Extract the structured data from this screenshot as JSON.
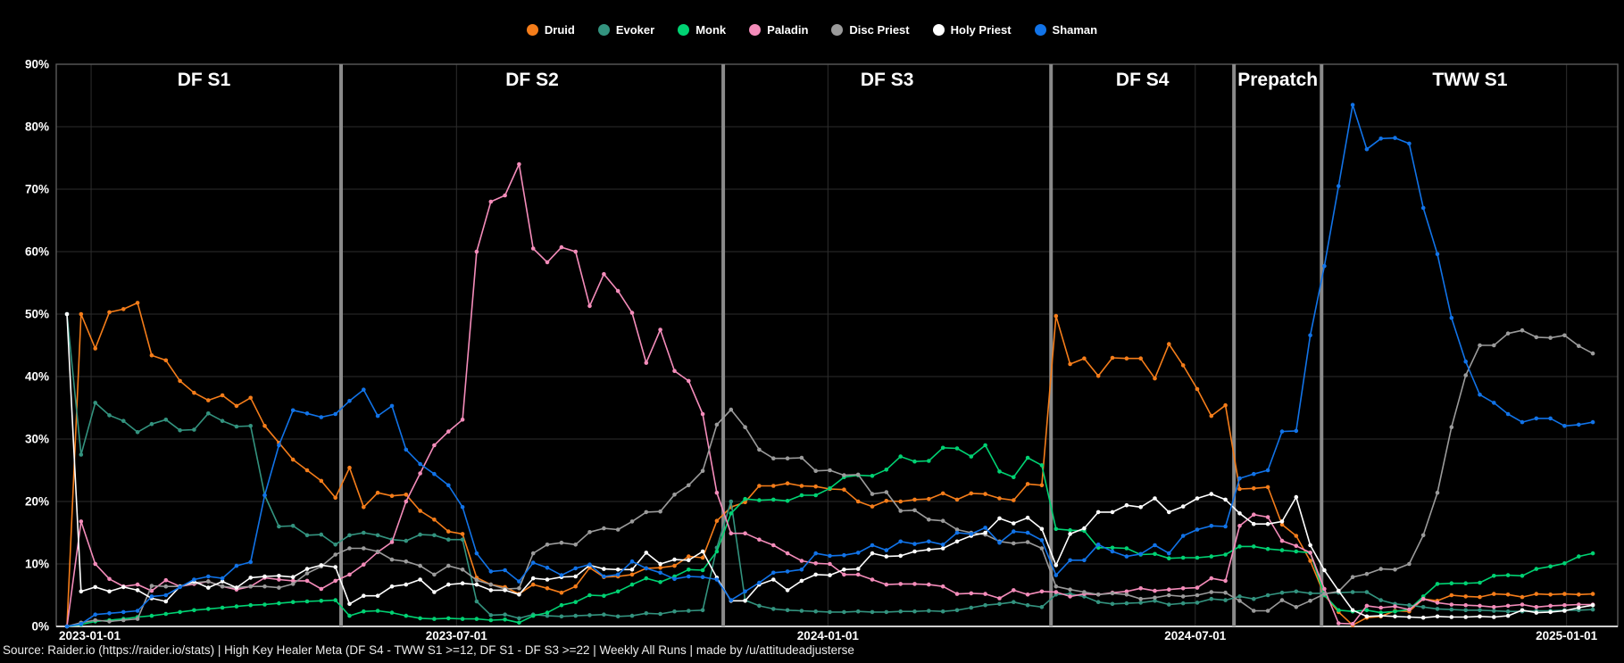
{
  "source_line": "Source: Raider.io (https://raider.io/stats) | High Key Healer Meta (DF S4 - TWW S1 >=12, DF S1 - DF S3 >=22 | Weekly All Runs | made by /u/attitudeadjusterse",
  "colors": {
    "background": "#000000",
    "grid": "#2d2d2d",
    "plot_border": "#5a5a5a",
    "bottom_axis": "#d0d0d0",
    "season_divider": "#8a8a8a",
    "text": "#ffffff"
  },
  "chart_data": {
    "type": "line",
    "title": "High Key Healer Meta",
    "grid": true,
    "legend_position": "top",
    "ylim": [
      0,
      90
    ],
    "y_ticks": [
      "0%",
      "10%",
      "20%",
      "30%",
      "40%",
      "50%",
      "60%",
      "70%",
      "80%",
      "90%"
    ],
    "x_start_date": "2022-12-20",
    "x_interval": "weekly",
    "weeks_count": 109,
    "plot_end_week": 109.8,
    "x_ticks": [
      {
        "label": "2023-01-01",
        "week": 1.71
      },
      {
        "label": "2023-07-01",
        "week": 27.57
      },
      {
        "label": "2024-01-01",
        "week": 53.86
      },
      {
        "label": "2024-07-01",
        "week": 79.86
      },
      {
        "label": "2025-01-01",
        "week": 106.14
      }
    ],
    "sections": [
      {
        "label": "DF S1",
        "start_week": 0
      },
      {
        "label": "DF S2",
        "start_week": 19.4
      },
      {
        "label": "DF S3",
        "start_week": 46.45
      },
      {
        "label": "DF S4",
        "start_week": 69.65
      },
      {
        "label": "Prepatch",
        "start_week": 82.6
      },
      {
        "label": "TWW S1",
        "start_week": 88.8
      }
    ],
    "series": [
      {
        "name": "Druid",
        "color": "#f57d1a",
        "values": [
          0,
          50,
          44.5,
          50.3,
          50.8,
          51.8,
          43.4,
          42.6,
          39.3,
          37.4,
          36.2,
          37,
          35.3,
          36.6,
          32.1,
          29.4,
          26.7,
          25,
          23.3,
          20.6,
          25.4,
          19.1,
          21.4,
          20.9,
          21.1,
          18.5,
          17.1,
          15.2,
          14.8,
          7.8,
          6.7,
          6.3,
          5.2,
          6.7,
          6.1,
          5.4,
          6.4,
          9.4,
          7.9,
          8,
          8.3,
          9.3,
          9.4,
          9.7,
          11.2,
          11,
          16.9,
          19.1,
          19.9,
          22.5,
          22.5,
          22.9,
          22.5,
          22.4,
          22,
          21.9,
          20,
          19.2,
          20.1,
          20,
          20.3,
          20.4,
          21.3,
          20.3,
          21.3,
          21.2,
          20.5,
          20.2,
          22.8,
          22.6,
          49.7,
          42,
          42.9,
          40.1,
          43,
          42.9,
          42.9,
          39.7,
          45.2,
          41.8,
          38,
          33.7,
          35.4,
          22,
          22.1,
          22.3,
          16.3,
          14.5,
          10.5,
          5,
          2.3,
          0.2,
          1.4,
          1.6,
          2.5,
          2.4,
          4.4,
          4.1,
          5,
          4.8,
          4.7,
          5.2,
          5.1,
          4.7,
          5.2,
          5.1,
          5.2,
          5.1,
          5.2
        ]
      },
      {
        "name": "Evoker",
        "color": "#33937f",
        "values": [
          50,
          27.5,
          35.8,
          33.8,
          32.9,
          31.1,
          32.4,
          33.1,
          31.4,
          31.5,
          34.1,
          32.9,
          32,
          32.1,
          21,
          16,
          16.1,
          14.6,
          14.7,
          13.1,
          14.6,
          15,
          14.6,
          13.9,
          13.7,
          14.7,
          14.6,
          13.9,
          13.9,
          4,
          1.8,
          1.9,
          1.3,
          1.9,
          1.7,
          1.6,
          1.7,
          1.8,
          1.9,
          1.6,
          1.7,
          2.1,
          2,
          2.4,
          2.5,
          2.6,
          12.6,
          20,
          4.2,
          3.3,
          2.8,
          2.6,
          2.5,
          2.4,
          2.3,
          2.3,
          2.4,
          2.3,
          2.3,
          2.4,
          2.4,
          2.5,
          2.4,
          2.6,
          3,
          3.4,
          3.6,
          3.9,
          3.4,
          3.1,
          5.1,
          5.2,
          4.8,
          3.9,
          3.6,
          3.7,
          3.8,
          4.1,
          3.5,
          3.7,
          3.8,
          4.4,
          4.2,
          4.8,
          4.4,
          5,
          5.4,
          5.6,
          5.3,
          5.3,
          5.4,
          5.5,
          5.5,
          4.2,
          3.6,
          3.4,
          3.1,
          2.8,
          2.7,
          2.6,
          2.6,
          2.5,
          2.4,
          2.4,
          2.5,
          2.5,
          2.6,
          2.6,
          2.7
        ]
      },
      {
        "name": "Monk",
        "color": "#00d273",
        "values": [
          0,
          0.3,
          0.8,
          1,
          1.2,
          1.5,
          1.7,
          2,
          2.3,
          2.6,
          2.8,
          3,
          3.2,
          3.4,
          3.5,
          3.7,
          3.9,
          4,
          4.1,
          4.2,
          1.7,
          2.4,
          2.5,
          2.2,
          1.7,
          1.3,
          1.2,
          1.3,
          1.2,
          1.2,
          1,
          1.1,
          0.6,
          1.7,
          2.2,
          3.4,
          3.9,
          5,
          4.9,
          5.6,
          6.7,
          7.7,
          7.1,
          8,
          9.1,
          9,
          12,
          18.1,
          20.4,
          20.2,
          20.3,
          20.1,
          21,
          21,
          22.1,
          23.9,
          24.2,
          24.1,
          25.1,
          27.2,
          26.4,
          26.5,
          28.6,
          28.5,
          27.2,
          29,
          24.8,
          23.9,
          27,
          25.8,
          15.6,
          15.4,
          15.3,
          12.6,
          12.6,
          12.5,
          11.5,
          11.6,
          10.9,
          11,
          11,
          11.2,
          11.5,
          12.8,
          12.8,
          12.4,
          12.2,
          12,
          11.8,
          5,
          2.6,
          2.4,
          2.6,
          2.2,
          2.4,
          2.7,
          4.8,
          6.8,
          6.9,
          6.9,
          7,
          8.1,
          8.2,
          8.1,
          9.2,
          9.6,
          10.1,
          11.2,
          11.7
        ]
      },
      {
        "name": "Paladin",
        "color": "#f48cba",
        "values": [
          0,
          16.8,
          10,
          7.6,
          6.4,
          6.7,
          5.7,
          7.4,
          6.4,
          6.8,
          7.2,
          6.4,
          5.9,
          6.4,
          7.8,
          7.5,
          7.3,
          7.3,
          6,
          7.3,
          8.3,
          9.9,
          11.9,
          13.5,
          20,
          24.5,
          29,
          31.2,
          33.1,
          60,
          68,
          69,
          74,
          60.5,
          58.3,
          60.7,
          60,
          51.3,
          56.4,
          53.7,
          50.2,
          42.2,
          47.5,
          40.9,
          39.3,
          34,
          21.4,
          14.9,
          14.9,
          13.9,
          13,
          11.7,
          10.5,
          10.1,
          10,
          8.3,
          8.3,
          7.5,
          6.7,
          6.8,
          6.8,
          6.7,
          6.4,
          5.2,
          5.3,
          5.2,
          4.5,
          5.8,
          5.1,
          5.6,
          5.5,
          4.8,
          5.2,
          5.1,
          5.4,
          5.6,
          6.1,
          5.7,
          5.9,
          6.1,
          6.2,
          7.7,
          7.3,
          16.1,
          17.9,
          17.5,
          13.7,
          12.9,
          11.8,
          6,
          0.5,
          0.4,
          3.3,
          3,
          3.2,
          2.7,
          4.4,
          3.8,
          3.5,
          3.4,
          3.3,
          3.1,
          3.3,
          3.5,
          3.1,
          3.3,
          3.4,
          3.5,
          3.5
        ]
      },
      {
        "name": "Disc Priest",
        "color": "#9b9b9b",
        "values": [
          0,
          0.6,
          1,
          0.8,
          1,
          1.2,
          6.5,
          6.4,
          6.4,
          7,
          7.2,
          6.4,
          6.2,
          6.4,
          6.4,
          6.2,
          6.8,
          8.5,
          9.6,
          11.5,
          12.5,
          12.5,
          12,
          10.7,
          10.4,
          9.7,
          8.3,
          9.7,
          9.1,
          7.4,
          6.7,
          6,
          6.1,
          11.7,
          13.1,
          13.4,
          13.1,
          15.1,
          15.7,
          15.5,
          16.8,
          18.3,
          18.4,
          21.1,
          22.6,
          24.9,
          32.3,
          34.7,
          31.9,
          28.3,
          26.9,
          26.9,
          27,
          24.9,
          25,
          24.2,
          24.3,
          21.2,
          21.5,
          18.5,
          18.6,
          17.1,
          16.9,
          15.5,
          15,
          14.7,
          13.6,
          13.3,
          13.5,
          12.5,
          6.4,
          5.9,
          5.5,
          5.1,
          5.3,
          5.1,
          4.4,
          4.6,
          5,
          4.8,
          5,
          5.5,
          5.4,
          4.1,
          2.5,
          2.5,
          4.2,
          3.1,
          4.1,
          5.2,
          5.6,
          7.9,
          8.4,
          9.2,
          9.1,
          10,
          14.6,
          21.4,
          31.9,
          40.2,
          45,
          45,
          46.9,
          47.4,
          46.3,
          46.2,
          46.6,
          44.9,
          43.7
        ]
      },
      {
        "name": "Holy Priest",
        "color": "#ffffff",
        "values": [
          50,
          5.6,
          6.3,
          5.6,
          6.3,
          5.8,
          4.5,
          4,
          6.4,
          7.2,
          6.2,
          7.2,
          6.2,
          7.8,
          8,
          8.1,
          7.9,
          9.2,
          9.8,
          9.5,
          3.6,
          4.9,
          4.9,
          6.4,
          6.7,
          7.5,
          5.5,
          6.7,
          6.9,
          6.7,
          5.8,
          5.8,
          5.1,
          7.7,
          7.5,
          7.9,
          8,
          9.8,
          9.2,
          9.1,
          9.1,
          11.8,
          10,
          10.7,
          10.6,
          12,
          7.8,
          4.1,
          4.1,
          6.7,
          7.5,
          5.8,
          7.3,
          8.3,
          8.2,
          9.1,
          9.2,
          11.7,
          11.2,
          11.3,
          12,
          12.3,
          12.5,
          13.6,
          14.5,
          15,
          17.3,
          16.5,
          17.4,
          15.6,
          9.8,
          14.8,
          15.7,
          18.3,
          18.3,
          19.4,
          19.1,
          20.5,
          18.3,
          19.2,
          20.5,
          21.2,
          20.3,
          18.1,
          16.4,
          16.4,
          16.8,
          20.7,
          13,
          9,
          5.7,
          2.6,
          1.6,
          1.7,
          1.6,
          1.5,
          1.4,
          1.6,
          1.5,
          1.5,
          1.6,
          1.5,
          1.7,
          2.6,
          2.2,
          2.3,
          2.5,
          3,
          3.4
        ]
      },
      {
        "name": "Shaman",
        "color": "#1173e8",
        "values": [
          0,
          0.4,
          1.9,
          2.1,
          2.3,
          2.5,
          4.8,
          5,
          6.3,
          7.5,
          8,
          7.7,
          9.7,
          10.3,
          21,
          29,
          34.6,
          34.1,
          33.5,
          34,
          36.1,
          37.9,
          33.7,
          35.3,
          28.3,
          26,
          24.4,
          22.6,
          19.1,
          11.7,
          8.8,
          9,
          7.2,
          10.2,
          9.4,
          8.2,
          9.3,
          9.9,
          8,
          8.3,
          10.4,
          9.3,
          8.6,
          7.6,
          8,
          7.9,
          7.5,
          4.2,
          5.6,
          7,
          8.6,
          8.8,
          9.1,
          11.7,
          11.3,
          11.4,
          11.8,
          13,
          12.2,
          13.6,
          13.2,
          13.6,
          13.1,
          15,
          14.8,
          15.8,
          13.4,
          15.2,
          15,
          13.8,
          8.2,
          10.6,
          10.6,
          13.1,
          12,
          11.2,
          11.6,
          13,
          11.7,
          14.5,
          15.5,
          16.1,
          16,
          23.7,
          24.4,
          25,
          31.2,
          31.3,
          46.6,
          57.7,
          70.5,
          83.5,
          76.4,
          78.1,
          78.2,
          77.3,
          67,
          59.6,
          49.4,
          42.4,
          37.1,
          35.8,
          34,
          32.7,
          33.3,
          33.3,
          32.1,
          32.3,
          32.7
        ]
      }
    ]
  }
}
